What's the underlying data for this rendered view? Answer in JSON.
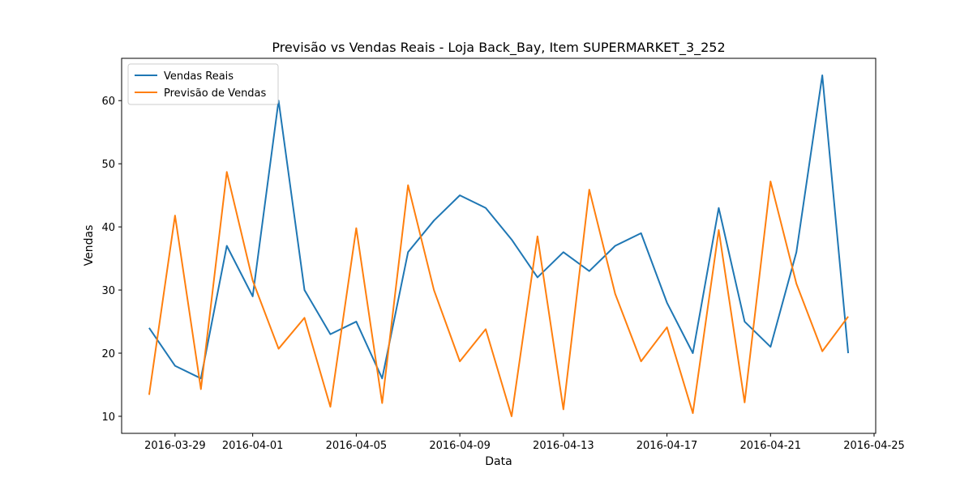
{
  "chart_data": {
    "type": "line",
    "title": "Previsão vs Vendas Reais - Loja Back_Bay, Item SUPERMARKET_3_252",
    "xlabel": "Data",
    "ylabel": "Vendas",
    "x": [
      "2016-03-28",
      "2016-03-29",
      "2016-03-30",
      "2016-03-31",
      "2016-04-01",
      "2016-04-02",
      "2016-04-03",
      "2016-04-04",
      "2016-04-05",
      "2016-04-06",
      "2016-04-07",
      "2016-04-08",
      "2016-04-09",
      "2016-04-10",
      "2016-04-11",
      "2016-04-12",
      "2016-04-13",
      "2016-04-14",
      "2016-04-15",
      "2016-04-16",
      "2016-04-17",
      "2016-04-18",
      "2016-04-19",
      "2016-04-20",
      "2016-04-21",
      "2016-04-22",
      "2016-04-23",
      "2016-04-24"
    ],
    "x_ticks": [
      "2016-03-29",
      "2016-04-01",
      "2016-04-05",
      "2016-04-09",
      "2016-04-13",
      "2016-04-17",
      "2016-04-21",
      "2016-04-25"
    ],
    "xlim": [
      "2016-03-26T22:30",
      "2016-04-25T01:30"
    ],
    "ylim": [
      7.3,
      66.7
    ],
    "y_ticks": [
      10,
      20,
      30,
      40,
      50,
      60
    ],
    "grid": false,
    "legend": "top-left",
    "series": [
      {
        "name": "Vendas Reais",
        "color": "#1f77b4",
        "values": [
          24,
          18,
          16,
          37,
          29,
          60,
          30,
          23,
          25,
          16,
          36,
          41,
          45,
          43,
          38,
          32,
          36,
          33,
          37,
          39,
          28,
          20,
          43,
          25,
          21,
          36,
          64,
          20
        ]
      },
      {
        "name": "Previsão de Vendas",
        "color": "#ff7f0e",
        "values": [
          13.4,
          41.8,
          14.3,
          48.7,
          31.5,
          20.7,
          25.6,
          11.5,
          39.8,
          12.1,
          46.6,
          30.0,
          18.7,
          23.8,
          10.0,
          38.5,
          11.1,
          45.9,
          29.4,
          18.7,
          24.1,
          10.5,
          39.5,
          12.2,
          47.2,
          31.0,
          20.3,
          25.8
        ]
      }
    ]
  }
}
